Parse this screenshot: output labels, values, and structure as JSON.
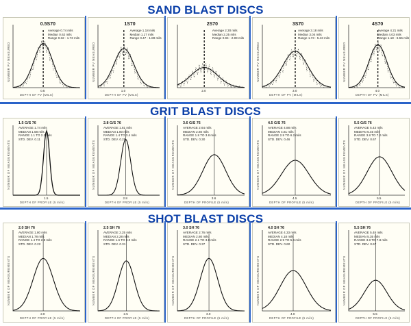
{
  "sections": [
    {
      "title": "SAND BLAST DISCS"
    },
    {
      "title": "GRIT BLAST DISCS"
    },
    {
      "title": "SHOT BLAST DISCS"
    }
  ],
  "sand": [
    {
      "title": "0.5S70",
      "stats": [
        "Average 0.74 mils",
        "Median 0.62 mils",
        "Range 0.32 - 1.73 mils"
      ],
      "ylabel": "NUMBER PV MEASURED",
      "xlabel": "DEPTH OF PV (MILS)",
      "tick": "0.5"
    },
    {
      "title": "1S70",
      "stats": [
        "Average 1.18 mils",
        "Median 1.17 mils",
        "Range 0.47 - 1.89 mils"
      ],
      "ylabel": "NUMBER PV MEASURED",
      "xlabel": "DEPTH OF PV (MILS)",
      "tick": "1.0"
    },
    {
      "title": "2S70",
      "stats": [
        "Average 2.30 mils",
        "Median 2.25 mils",
        "Range 0.94 - 2.99 mils"
      ],
      "ylabel": "",
      "xlabel": "",
      "tick": "2.0"
    },
    {
      "title": "3S70",
      "stats": [
        "Average 3.18 mils",
        "Median 3.04 mils",
        "Range 1.73 - 5.43 mils"
      ],
      "ylabel": "NUMBER PV MEASURED",
      "xlabel": "DEPTH OF PV (MILS)",
      "tick": "3.0"
    },
    {
      "title": "4S70",
      "stats": [
        "Average 4.21 mils",
        "Median 4.03 mils",
        "Range 1.18 - 6.55 mils"
      ],
      "ylabel": "NUMBER PV MEASURED",
      "xlabel": "DEPTH OF PV (MILS)",
      "tick": "4.0"
    }
  ],
  "grit": [
    {
      "title": "1.5 G/S 76",
      "stats": [
        "AVERAGE 1.74 mils",
        "MEDIAN 1.58 mils",
        "RANGE 1.1 TO 2.2 mils",
        "STD. DEV. 0.11"
      ],
      "ylabel": "NUMBER OF MEASUREMENTS",
      "xlabel": "DEPTH OF PROFILE (5 mils)",
      "tick": "1.5"
    },
    {
      "title": "2.8 G/S 76",
      "stats": [
        "AVERAGE 1.81 mils",
        "MEDIAN 1.80 mils",
        "RANGE 1.4 TO 3.4 mils",
        "STD. DEV. 0.25"
      ],
      "ylabel": "NUMBER OF MEASUREMENTS",
      "xlabel": "DEPTH OF PROFILE (5 mils)",
      "tick": "2.8"
    },
    {
      "title": "3.6 G/S 76",
      "stats": [
        "AVERAGE 2.64 mils",
        "MEDIAN 2.60 mils",
        "RANGE 1.8 TO 3.8 mils",
        "STD. DEV. 0.30"
      ],
      "ylabel": "NUMBER OF MEASUREMENTS",
      "xlabel": "DEPTH OF PROFILE (5 mils)",
      "tick": "3.6"
    },
    {
      "title": "4.5 G/S 76",
      "stats": [
        "AVERAGE 4.88 mils",
        "MEDIAN 4.81 mils",
        "RANGE 2.8 TO 6.2 mils",
        "STD. DEV. 0.46"
      ],
      "ylabel": "NUMBER OF MEASUREMENTS",
      "xlabel": "DEPTH OF PROFILE (5 mils)",
      "tick": "4.5"
    },
    {
      "title": "5.5 G/S 76",
      "stats": [
        "AVERAGE 5.43 mils",
        "MEDIAN 5.45 mils",
        "RANGE 3.8 TO 7.2 mils",
        "STD. DEV. 0.67"
      ],
      "ylabel": "NUMBER OF MEASUREMENTS",
      "xlabel": "DEPTH OF PROFILE (5 mils)",
      "tick": "5.5"
    }
  ],
  "shot": [
    {
      "title": "2.0 SH 76",
      "stats": [
        "AVERAGE 1.80 mils",
        "MEDIAN 1.78 mils",
        "RANGE 1.4 TO 2.8 mils",
        "STD. DEV. 0.22"
      ],
      "ylabel": "NUMBER OF MEASUREMENTS",
      "xlabel": "DEPTH OF PROFILE (5 mils)",
      "tick": "2.0"
    },
    {
      "title": "2.5 SH 76",
      "stats": [
        "AVERAGE 2.25 mils",
        "MEDIAN 2.28 mils",
        "RANGE 1.6 TO 3.0 mils",
        "STD. DEV. 0.31"
      ],
      "ylabel": "NUMBER OF MEASUREMENTS",
      "xlabel": "DEPTH OF PROFILE (5 mils)",
      "tick": "2.5"
    },
    {
      "title": "3.0 SH 76",
      "stats": [
        "AVERAGE 2.76 mils",
        "MEDIAN 2.80 mils",
        "RANGE 2.1 TO 3.8 mils",
        "STD. DEV. 0.37"
      ],
      "ylabel": "NUMBER OF MEASUREMENTS",
      "xlabel": "DEPTH OF PROFILE (5 mils)",
      "tick": "3.0"
    },
    {
      "title": "4.0 SH 76",
      "stats": [
        "AVERAGE 4.33 mils",
        "MEDIAN 4.18 mils",
        "RANGE 2.9 TO 5.6 mils",
        "STD. DEV. 0.60"
      ],
      "ylabel": "NUMBER OF MEASUREMENTS",
      "xlabel": "DEPTH OF PROFILE (5 mils)",
      "tick": "4.0"
    },
    {
      "title": "5.5 SH 76",
      "stats": [
        "AVERAGE 5.48 mils",
        "MEDIAN 5.35 mils",
        "RANGE 3.8 TO 7.8 mils",
        "STD. DEV. 0.67"
      ],
      "ylabel": "NUMBER OF MEASUREMENTS",
      "xlabel": "DEPTH OF PROFILE (5 mils)",
      "tick": "5.5"
    }
  ],
  "colors": {
    "title": "#0b3fa8",
    "divider": "#2a63c9",
    "curve": "#111111",
    "paper": "#fffef5"
  }
}
